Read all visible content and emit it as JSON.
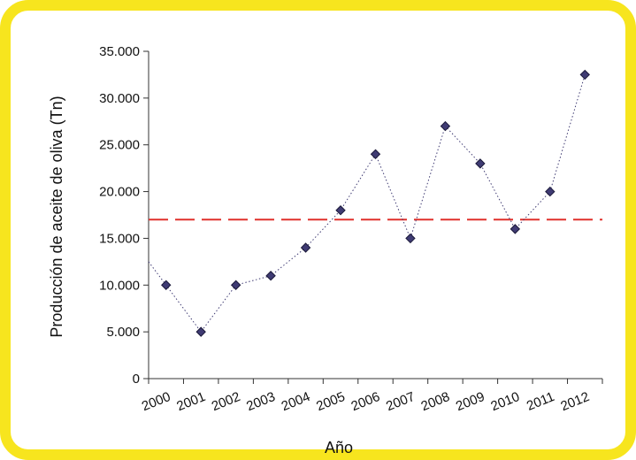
{
  "colors": {
    "frame_border": "#F7E51E",
    "marker_fill": "#3F3B73",
    "marker_stroke": "#1a1838",
    "line": "#3F3B73",
    "reference_line": "#E0302C",
    "axis": "#333333"
  },
  "chart_data": {
    "type": "line",
    "title": "",
    "xlabel": "Año",
    "ylabel": "Producción de aceite de oliva (Tn)",
    "ylim": [
      0,
      35000
    ],
    "yticks": [
      "0",
      "5.000",
      "10.000",
      "15.000",
      "20.000",
      "25.000",
      "30.000",
      "35.000"
    ],
    "categories": [
      "2000",
      "2001",
      "2002",
      "2003",
      "2004",
      "2005",
      "2006",
      "2007",
      "2008",
      "2009",
      "2010",
      "2011",
      "2012"
    ],
    "series": [
      {
        "values": [
          10000,
          5000,
          10000,
          11000,
          14000,
          18000,
          24000,
          15000,
          27000,
          23000,
          16000,
          20000,
          32500
        ],
        "line_style": "dotted",
        "marker": "diamond"
      }
    ],
    "reference_line": {
      "value": 17000,
      "style": "dashed"
    },
    "grid": false,
    "legend": "none"
  }
}
